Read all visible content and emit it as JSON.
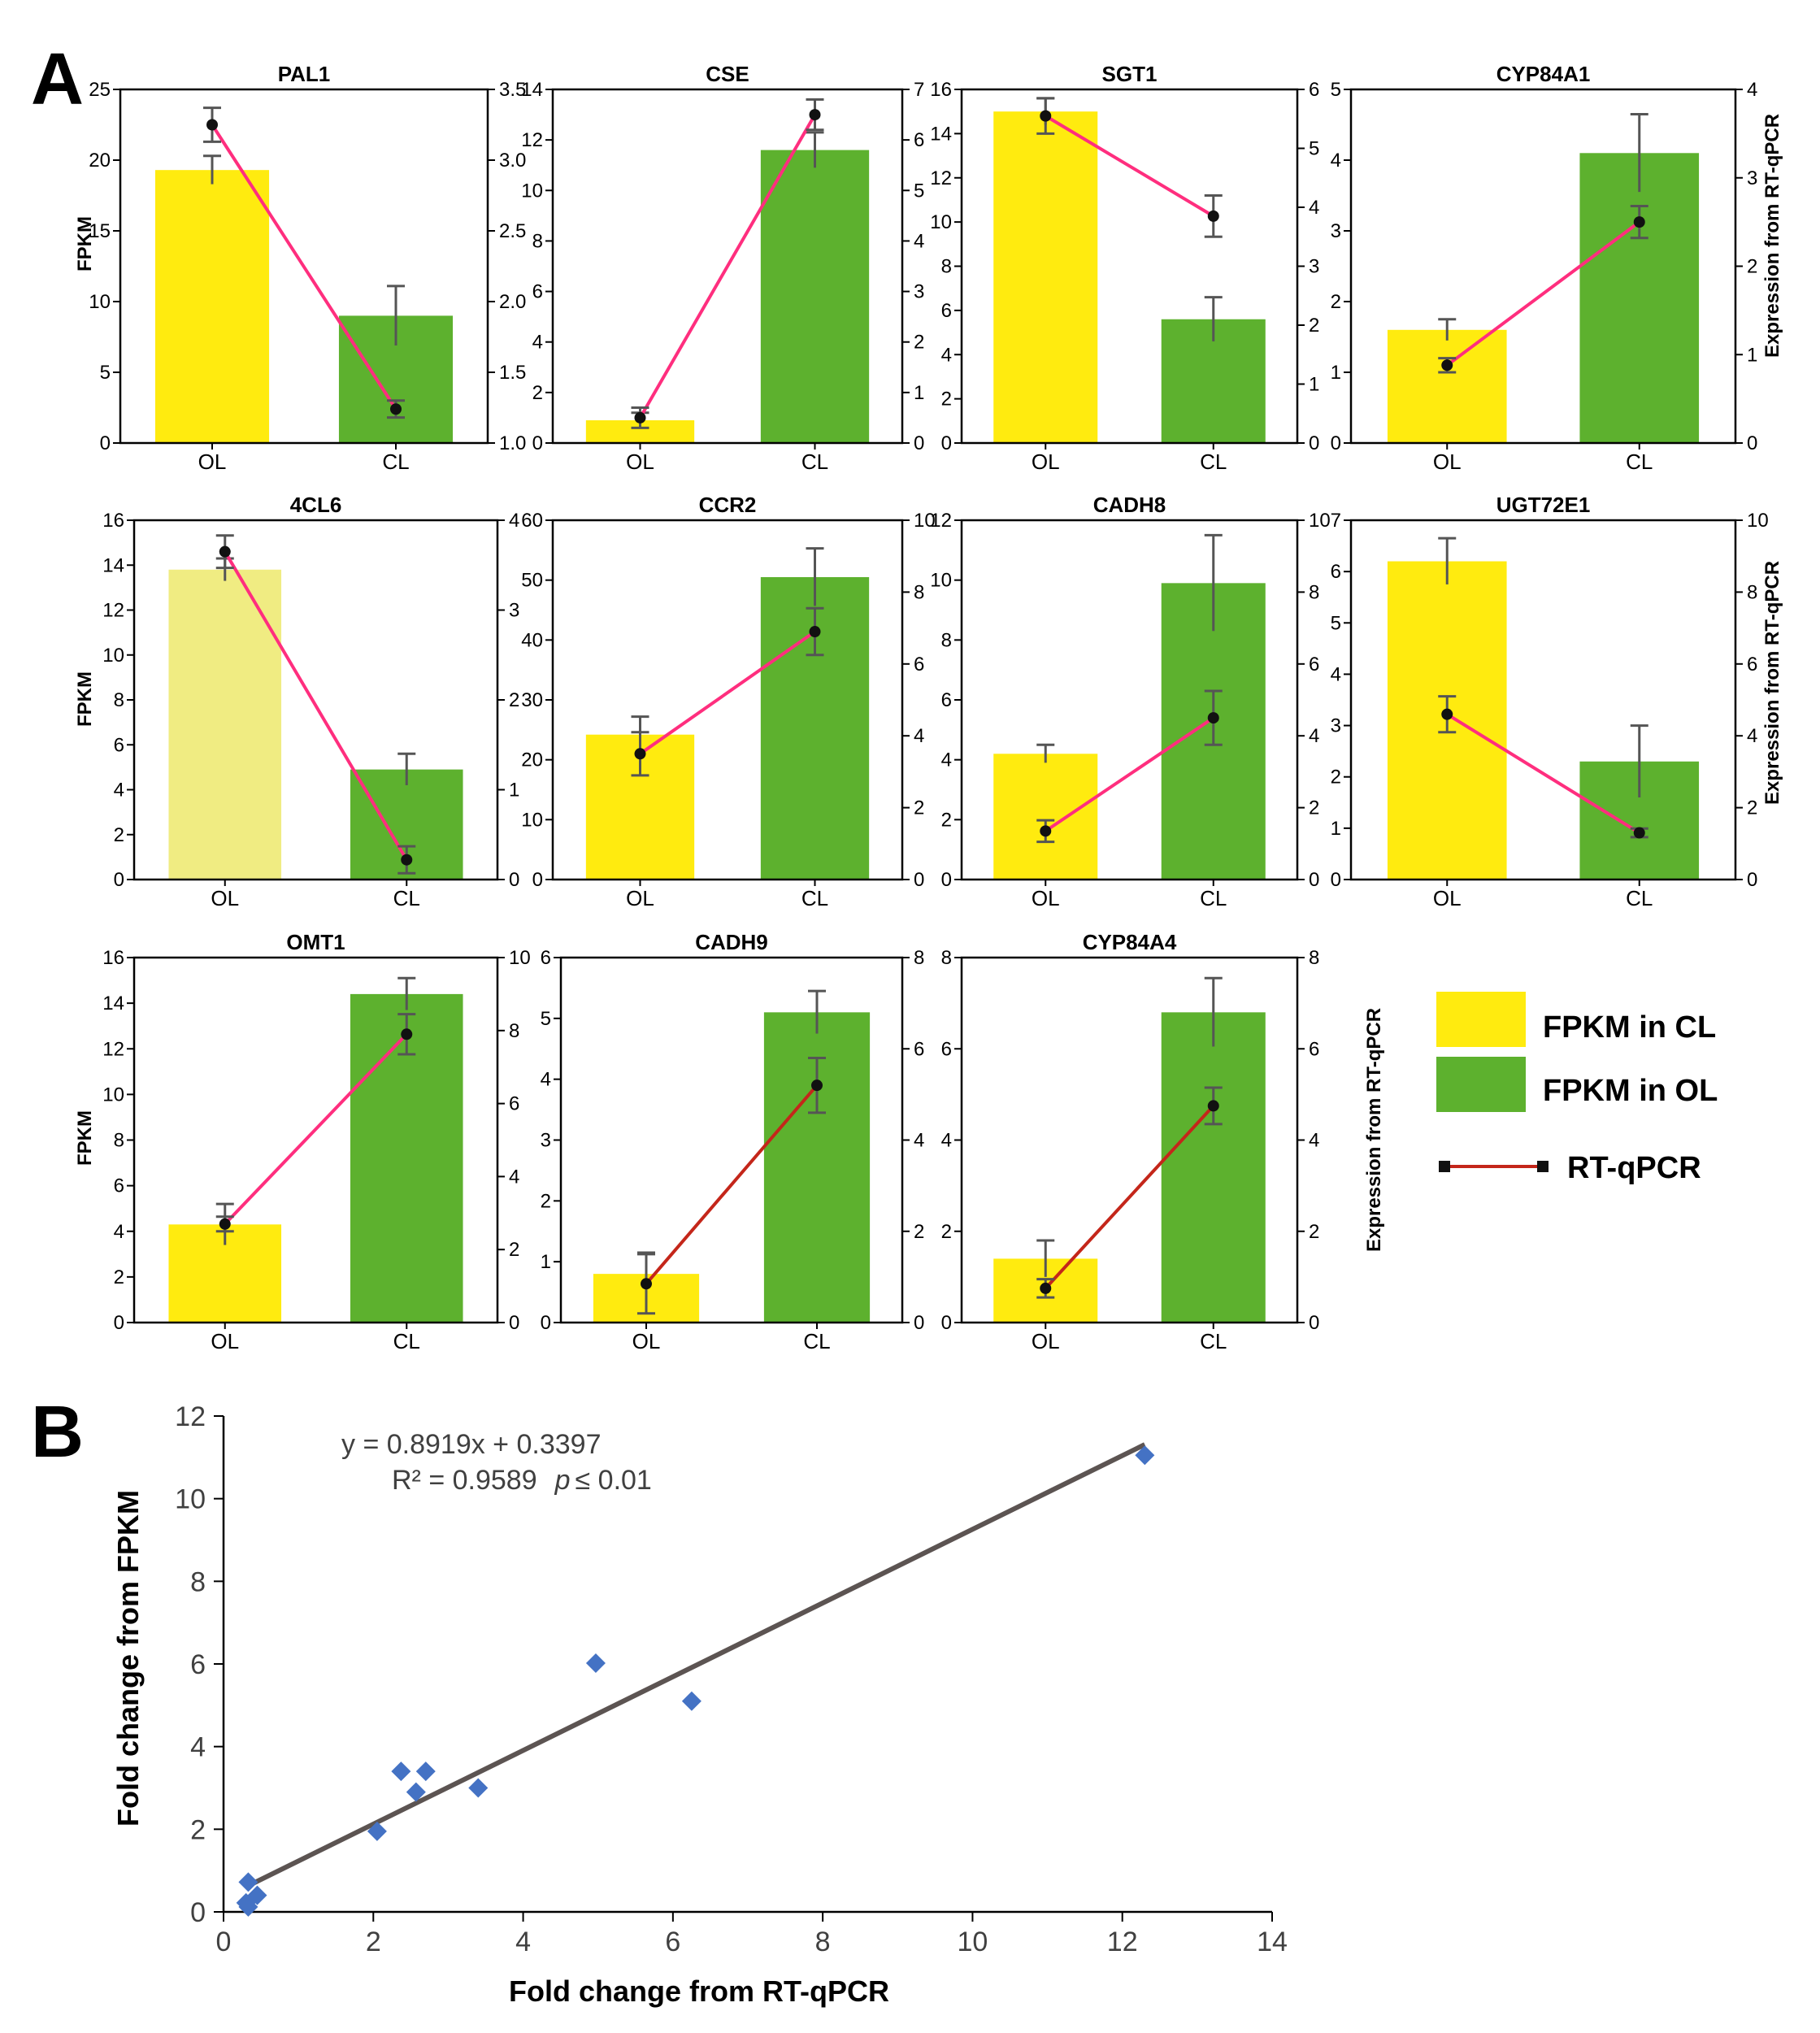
{
  "panel_labels": {
    "a": "A",
    "b": "B"
  },
  "colors": {
    "ol_bar": "#FFEB0F",
    "ol_bar_faded": "#F0EC82",
    "cl_bar": "#5DB12E",
    "line_pink": "#FF2E7E",
    "line_red": "#C4261A",
    "err": "#555555",
    "marker": "#111111",
    "scatter_point": "#4472C4",
    "trend_line": "#5C5452"
  },
  "legend": {
    "yellow_label": "FPKM in CL",
    "green_label": "FPKM in OL",
    "line_label": "RT-qPCR"
  },
  "left_axis_label": "FPKM",
  "right_axis_label": "Expression from RT-qPCR",
  "chart_data": [
    {
      "type": "bar+line",
      "title": "PAL1",
      "categories": [
        "OL",
        "CL"
      ],
      "fpkm": [
        19.3,
        9.0
      ],
      "fpkm_err": [
        1.0,
        2.1
      ],
      "rtqpcr": [
        3.25,
        1.24
      ],
      "rtqpcr_err": [
        0.12,
        0.06
      ],
      "left_ticks": [
        "0",
        "5",
        "10",
        "15",
        "20",
        "25"
      ],
      "left_lim": [
        0,
        25
      ],
      "right_ticks": [
        "1.0",
        "1.5",
        "2.0",
        "2.5",
        "3.0",
        "3.5"
      ],
      "right_lim": [
        1.0,
        3.5
      ],
      "line": "pink",
      "faded": false
    },
    {
      "type": "bar+line",
      "title": "CSE",
      "categories": [
        "OL",
        "CL"
      ],
      "fpkm": [
        0.9,
        11.6
      ],
      "fpkm_err": [
        0.3,
        0.7
      ],
      "rtqpcr": [
        0.5,
        6.5
      ],
      "rtqpcr_err": [
        0.2,
        0.3
      ],
      "left_ticks": [
        "0",
        "2",
        "4",
        "6",
        "8",
        "10",
        "12",
        "14"
      ],
      "left_lim": [
        0,
        14
      ],
      "right_ticks": [
        "0",
        "1",
        "2",
        "3",
        "4",
        "5",
        "6",
        "7"
      ],
      "right_lim": [
        0,
        7
      ],
      "line": "pink",
      "faded": false
    },
    {
      "type": "bar+line",
      "title": "SGT1",
      "categories": [
        "OL",
        "CL"
      ],
      "fpkm": [
        15.0,
        5.6
      ],
      "fpkm_err": [
        0.6,
        1.0
      ],
      "rtqpcr": [
        5.55,
        3.85
      ],
      "rtqpcr_err": [
        0.3,
        0.35
      ],
      "left_ticks": [
        "0",
        "2",
        "4",
        "6",
        "8",
        "10",
        "12",
        "14",
        "16"
      ],
      "left_lim": [
        0,
        16
      ],
      "right_ticks": [
        "0",
        "1",
        "2",
        "3",
        "4",
        "5",
        "6"
      ],
      "right_lim": [
        0,
        6
      ],
      "line": "pink",
      "faded": false
    },
    {
      "type": "bar+line",
      "title": "CYP84A1",
      "categories": [
        "OL",
        "CL"
      ],
      "fpkm": [
        1.6,
        4.1
      ],
      "fpkm_err": [
        0.15,
        0.55
      ],
      "rtqpcr": [
        0.88,
        2.5
      ],
      "rtqpcr_err": [
        0.08,
        0.18
      ],
      "left_ticks": [
        "0",
        "1",
        "2",
        "3",
        "4",
        "5"
      ],
      "left_lim": [
        0,
        5
      ],
      "right_ticks": [
        "0",
        "1",
        "2",
        "3",
        "4"
      ],
      "right_lim": [
        0,
        4
      ],
      "line": "pink",
      "faded": false
    },
    {
      "type": "bar+line",
      "title": "4CL6",
      "categories": [
        "OL",
        "CL"
      ],
      "fpkm": [
        13.8,
        4.9
      ],
      "fpkm_err": [
        0.5,
        0.7
      ],
      "rtqpcr": [
        3.65,
        0.22
      ],
      "rtqpcr_err": [
        0.18,
        0.15
      ],
      "left_ticks": [
        "0",
        "2",
        "4",
        "6",
        "8",
        "10",
        "12",
        "14",
        "16"
      ],
      "left_lim": [
        0,
        16
      ],
      "right_ticks": [
        "0",
        "1",
        "2",
        "3",
        "4"
      ],
      "right_lim": [
        0,
        4
      ],
      "line": "pink",
      "faded": true
    },
    {
      "type": "bar+line",
      "title": "CCR2",
      "categories": [
        "OL",
        "CL"
      ],
      "fpkm": [
        24.2,
        50.5
      ],
      "fpkm_err": [
        3.0,
        4.8
      ],
      "rtqpcr": [
        3.5,
        6.9
      ],
      "rtqpcr_err": [
        0.6,
        0.65
      ],
      "left_ticks": [
        "0",
        "10",
        "20",
        "30",
        "40",
        "50",
        "60"
      ],
      "left_lim": [
        0,
        60
      ],
      "right_ticks": [
        "0",
        "2",
        "4",
        "6",
        "8",
        "10"
      ],
      "right_lim": [
        0,
        10
      ],
      "line": "pink",
      "faded": false
    },
    {
      "type": "bar+line",
      "title": "CADH8",
      "categories": [
        "OL",
        "CL"
      ],
      "fpkm": [
        4.2,
        9.9
      ],
      "fpkm_err": [
        0.3,
        1.6
      ],
      "rtqpcr": [
        1.35,
        4.5
      ],
      "rtqpcr_err": [
        0.3,
        0.75
      ],
      "left_ticks": [
        "0",
        "2",
        "4",
        "6",
        "8",
        "10",
        "12"
      ],
      "left_lim": [
        0,
        12
      ],
      "right_ticks": [
        "0",
        "2",
        "4",
        "6",
        "8",
        "10"
      ],
      "right_lim": [
        0,
        10
      ],
      "line": "pink",
      "faded": false
    },
    {
      "type": "bar+line",
      "title": "UGT72E1",
      "categories": [
        "OL",
        "CL"
      ],
      "fpkm": [
        6.2,
        2.3
      ],
      "fpkm_err": [
        0.45,
        0.7
      ],
      "rtqpcr": [
        4.6,
        1.3
      ],
      "rtqpcr_err": [
        0.5,
        0.12
      ],
      "left_ticks": [
        "0",
        "1",
        "2",
        "3",
        "4",
        "5",
        "6",
        "7"
      ],
      "left_lim": [
        0,
        7
      ],
      "right_ticks": [
        "0",
        "2",
        "4",
        "6",
        "8",
        "10"
      ],
      "right_lim": [
        0,
        10
      ],
      "line": "pink",
      "faded": false
    },
    {
      "type": "bar+line",
      "title": "OMT1",
      "categories": [
        "OL",
        "CL"
      ],
      "fpkm": [
        4.3,
        14.4
      ],
      "fpkm_err": [
        0.9,
        0.7
      ],
      "rtqpcr": [
        2.7,
        7.9
      ],
      "rtqpcr_err": [
        0.2,
        0.55
      ],
      "left_ticks": [
        "0",
        "2",
        "4",
        "6",
        "8",
        "10",
        "12",
        "14",
        "16"
      ],
      "left_lim": [
        0,
        16
      ],
      "right_ticks": [
        "0",
        "2",
        "4",
        "6",
        "8",
        "10"
      ],
      "right_lim": [
        0,
        10
      ],
      "line": "pink",
      "faded": false
    },
    {
      "type": "bar+line",
      "title": "CADH9",
      "categories": [
        "OL",
        "CL"
      ],
      "fpkm": [
        0.8,
        5.1
      ],
      "fpkm_err": [
        0.35,
        0.35
      ],
      "rtqpcr": [
        0.85,
        5.2
      ],
      "rtqpcr_err": [
        0.65,
        0.6
      ],
      "left_ticks": [
        "0",
        "1",
        "2",
        "3",
        "4",
        "5",
        "6"
      ],
      "left_lim": [
        0,
        6
      ],
      "right_ticks": [
        "0",
        "2",
        "4",
        "6",
        "8"
      ],
      "right_lim": [
        0,
        8
      ],
      "line": "red",
      "faded": false
    },
    {
      "type": "bar+line",
      "title": "CYP84A4",
      "categories": [
        "OL",
        "CL"
      ],
      "fpkm": [
        1.4,
        6.8
      ],
      "fpkm_err": [
        0.4,
        0.75
      ],
      "rtqpcr": [
        0.75,
        4.75
      ],
      "rtqpcr_err": [
        0.2,
        0.4
      ],
      "left_ticks": [
        "0",
        "2",
        "4",
        "6",
        "8"
      ],
      "left_lim": [
        0,
        8
      ],
      "right_ticks": [
        "0",
        "2",
        "4",
        "6",
        "8"
      ],
      "right_lim": [
        0,
        8
      ],
      "line": "red",
      "faded": false
    },
    {
      "type": "scatter",
      "xlabel": "Fold change from RT-qPCR",
      "ylabel": "Fold change from FPKM",
      "xlim": [
        0,
        14
      ],
      "ylim": [
        0,
        12
      ],
      "x_ticks": [
        "0",
        "2",
        "4",
        "6",
        "8",
        "10",
        "12",
        "14"
      ],
      "y_ticks": [
        "0",
        "2",
        "4",
        "6",
        "8",
        "10",
        "12"
      ],
      "points": [
        [
          0.33,
          0.72
        ],
        [
          0.3,
          0.22
        ],
        [
          0.33,
          0.12
        ],
        [
          0.45,
          0.4
        ],
        [
          2.05,
          1.95
        ],
        [
          2.37,
          3.4
        ],
        [
          2.57,
          2.9
        ],
        [
          2.7,
          3.4
        ],
        [
          3.4,
          3.0
        ],
        [
          4.97,
          6.02
        ],
        [
          6.25,
          5.1
        ],
        [
          12.3,
          11.05
        ]
      ],
      "trend": {
        "slope": 0.8919,
        "intercept": 0.3397,
        "x_range": [
          0.3,
          12.3
        ]
      },
      "equation": "y = 0.8919x + 0.3397",
      "r2_text": "R² = 0.9589",
      "p_symbol": "p",
      "p_value": "≤ 0.01"
    }
  ]
}
